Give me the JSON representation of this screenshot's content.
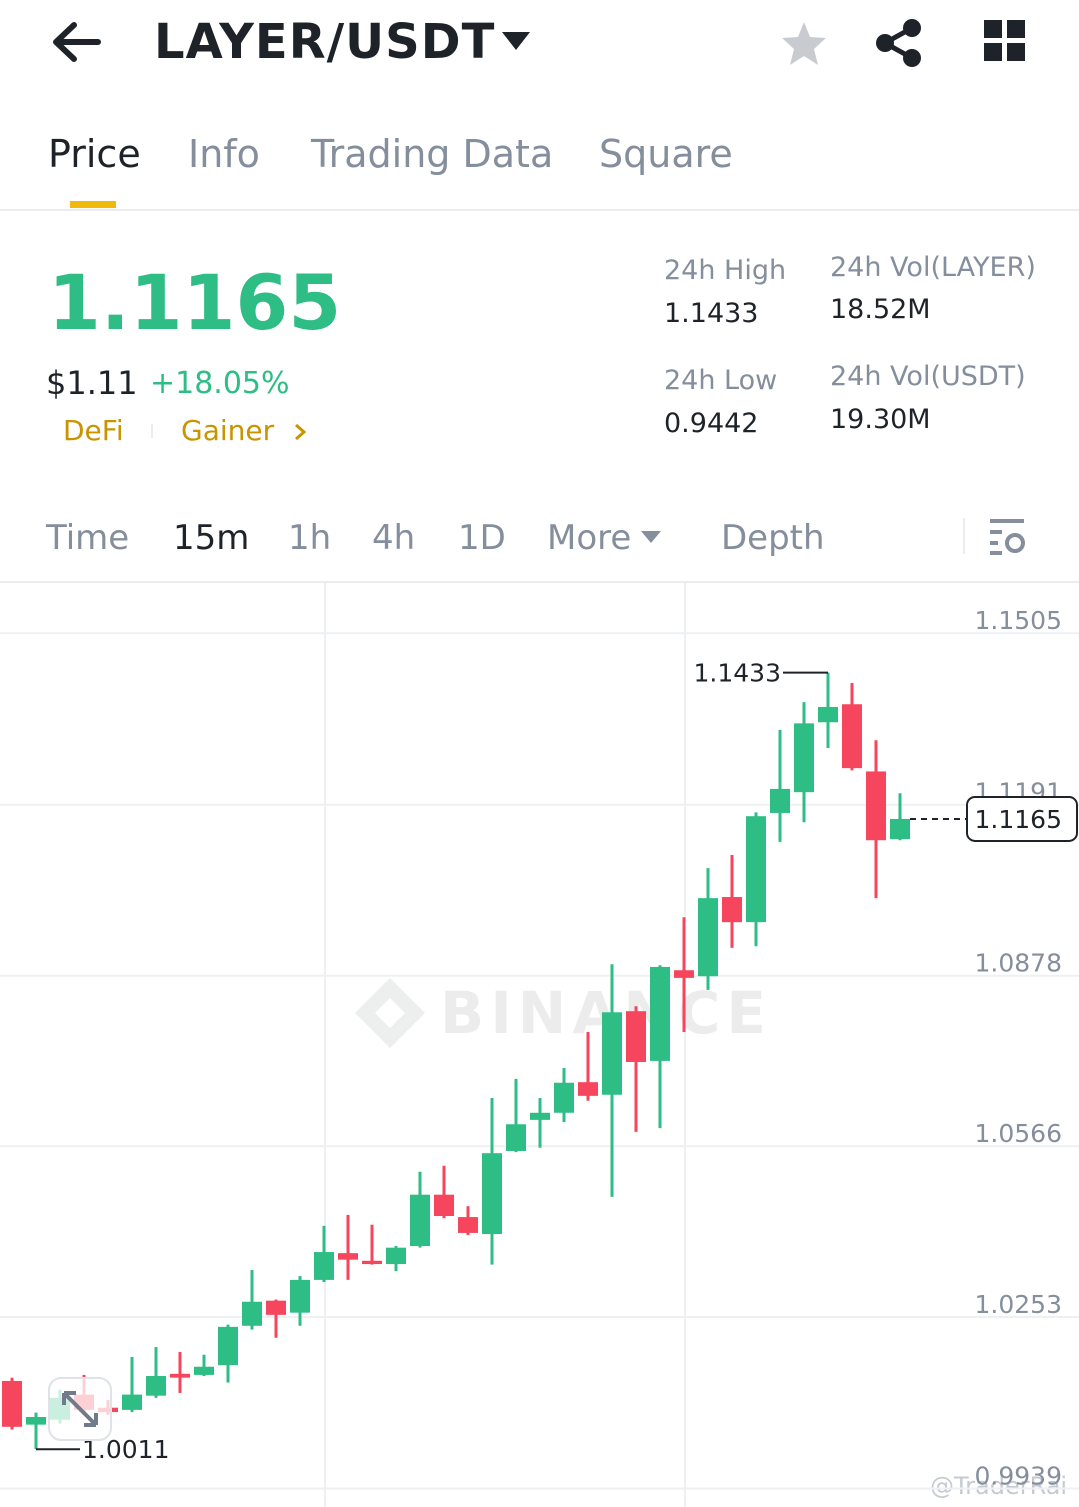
{
  "header": {
    "pair": "LAYER/USDT"
  },
  "tabs": [
    "Price",
    "Info",
    "Trading Data",
    "Square"
  ],
  "price": {
    "last": "1.1165",
    "usd": "$1.11",
    "change": "+18.05%",
    "tags": [
      "DeFi",
      "Gainer"
    ]
  },
  "stats": [
    {
      "label": "24h High",
      "value": "1.1433"
    },
    {
      "label": "24h Vol(LAYER)",
      "value": "18.52M"
    },
    {
      "label": "24h Low",
      "value": "0.9442"
    },
    {
      "label": "24h Vol(USDT)",
      "value": "19.30M"
    }
  ],
  "intervals": [
    "Time",
    "15m",
    "1h",
    "4h",
    "1D",
    "More",
    "Depth"
  ],
  "chart_data": {
    "type": "candlestick",
    "open": [
      1.0136,
      1.0056,
      1.0065,
      1.0111,
      1.0087,
      1.0083,
      1.0109,
      1.0149,
      1.0147,
      1.0165,
      1.0237,
      1.0283,
      1.0261,
      1.0321,
      1.037,
      1.0356,
      1.035,
      1.0383,
      1.0477,
      1.0436,
      1.0405,
      1.0557,
      1.0614,
      1.0627,
      1.0683,
      1.066,
      1.0813,
      1.0722,
      1.0888,
      1.0877,
      1.1022,
      1.0976,
      1.1176,
      1.1214,
      1.1342,
      1.1375,
      1.1252,
      1.1128
    ],
    "high": [
      1.0142,
      1.0078,
      1.012,
      1.0147,
      1.0101,
      1.018,
      1.0198,
      1.0189,
      1.0184,
      1.0239,
      1.0339,
      1.0285,
      1.0328,
      1.042,
      1.044,
      1.0422,
      1.0383,
      1.0519,
      1.053,
      1.0456,
      1.0654,
      1.0689,
      1.0654,
      1.0709,
      1.0775,
      1.0899,
      1.0822,
      1.0897,
      1.0985,
      1.1075,
      1.1099,
      1.1177,
      1.1328,
      1.1379,
      1.1433,
      1.1414,
      1.1309,
      1.1212
    ],
    "low": [
      1.0047,
      1.0011,
      1.0058,
      1.0074,
      1.0074,
      1.0079,
      1.0105,
      1.0114,
      1.0145,
      1.0133,
      1.023,
      1.0215,
      1.0237,
      1.0317,
      1.0321,
      1.0349,
      1.0337,
      1.038,
      1.0434,
      1.0403,
      1.0349,
      1.0555,
      1.0563,
      1.061,
      1.0649,
      1.0473,
      1.0592,
      1.0599,
      1.0775,
      1.0852,
      1.0929,
      1.0932,
      1.1123,
      1.1159,
      1.1295,
      1.1254,
      1.102,
      1.1126
    ],
    "close": [
      1.0052,
      1.007,
      1.0105,
      1.0083,
      1.0079,
      1.0111,
      1.0145,
      1.0142,
      1.0162,
      1.0235,
      1.0281,
      1.0257,
      1.0321,
      1.0372,
      1.0358,
      1.035,
      1.038,
      1.0477,
      1.0438,
      1.0407,
      1.0553,
      1.0606,
      1.0627,
      1.0682,
      1.0658,
      1.0811,
      1.072,
      1.0894,
      1.0874,
      1.102,
      1.0976,
      1.117,
      1.122,
      1.134,
      1.137,
      1.1258,
      1.1126,
      1.1165
    ],
    "ylim": [
      0.9918,
      1.1597
    ],
    "yticks": [
      1.1505,
      1.1191,
      1.0878,
      1.0566,
      1.0253,
      0.9939
    ],
    "grid": true,
    "up_color": "#2ebd85",
    "down_color": "#f6465d",
    "watermarks": [
      "BINANCE",
      "@TraderRai"
    ]
  }
}
